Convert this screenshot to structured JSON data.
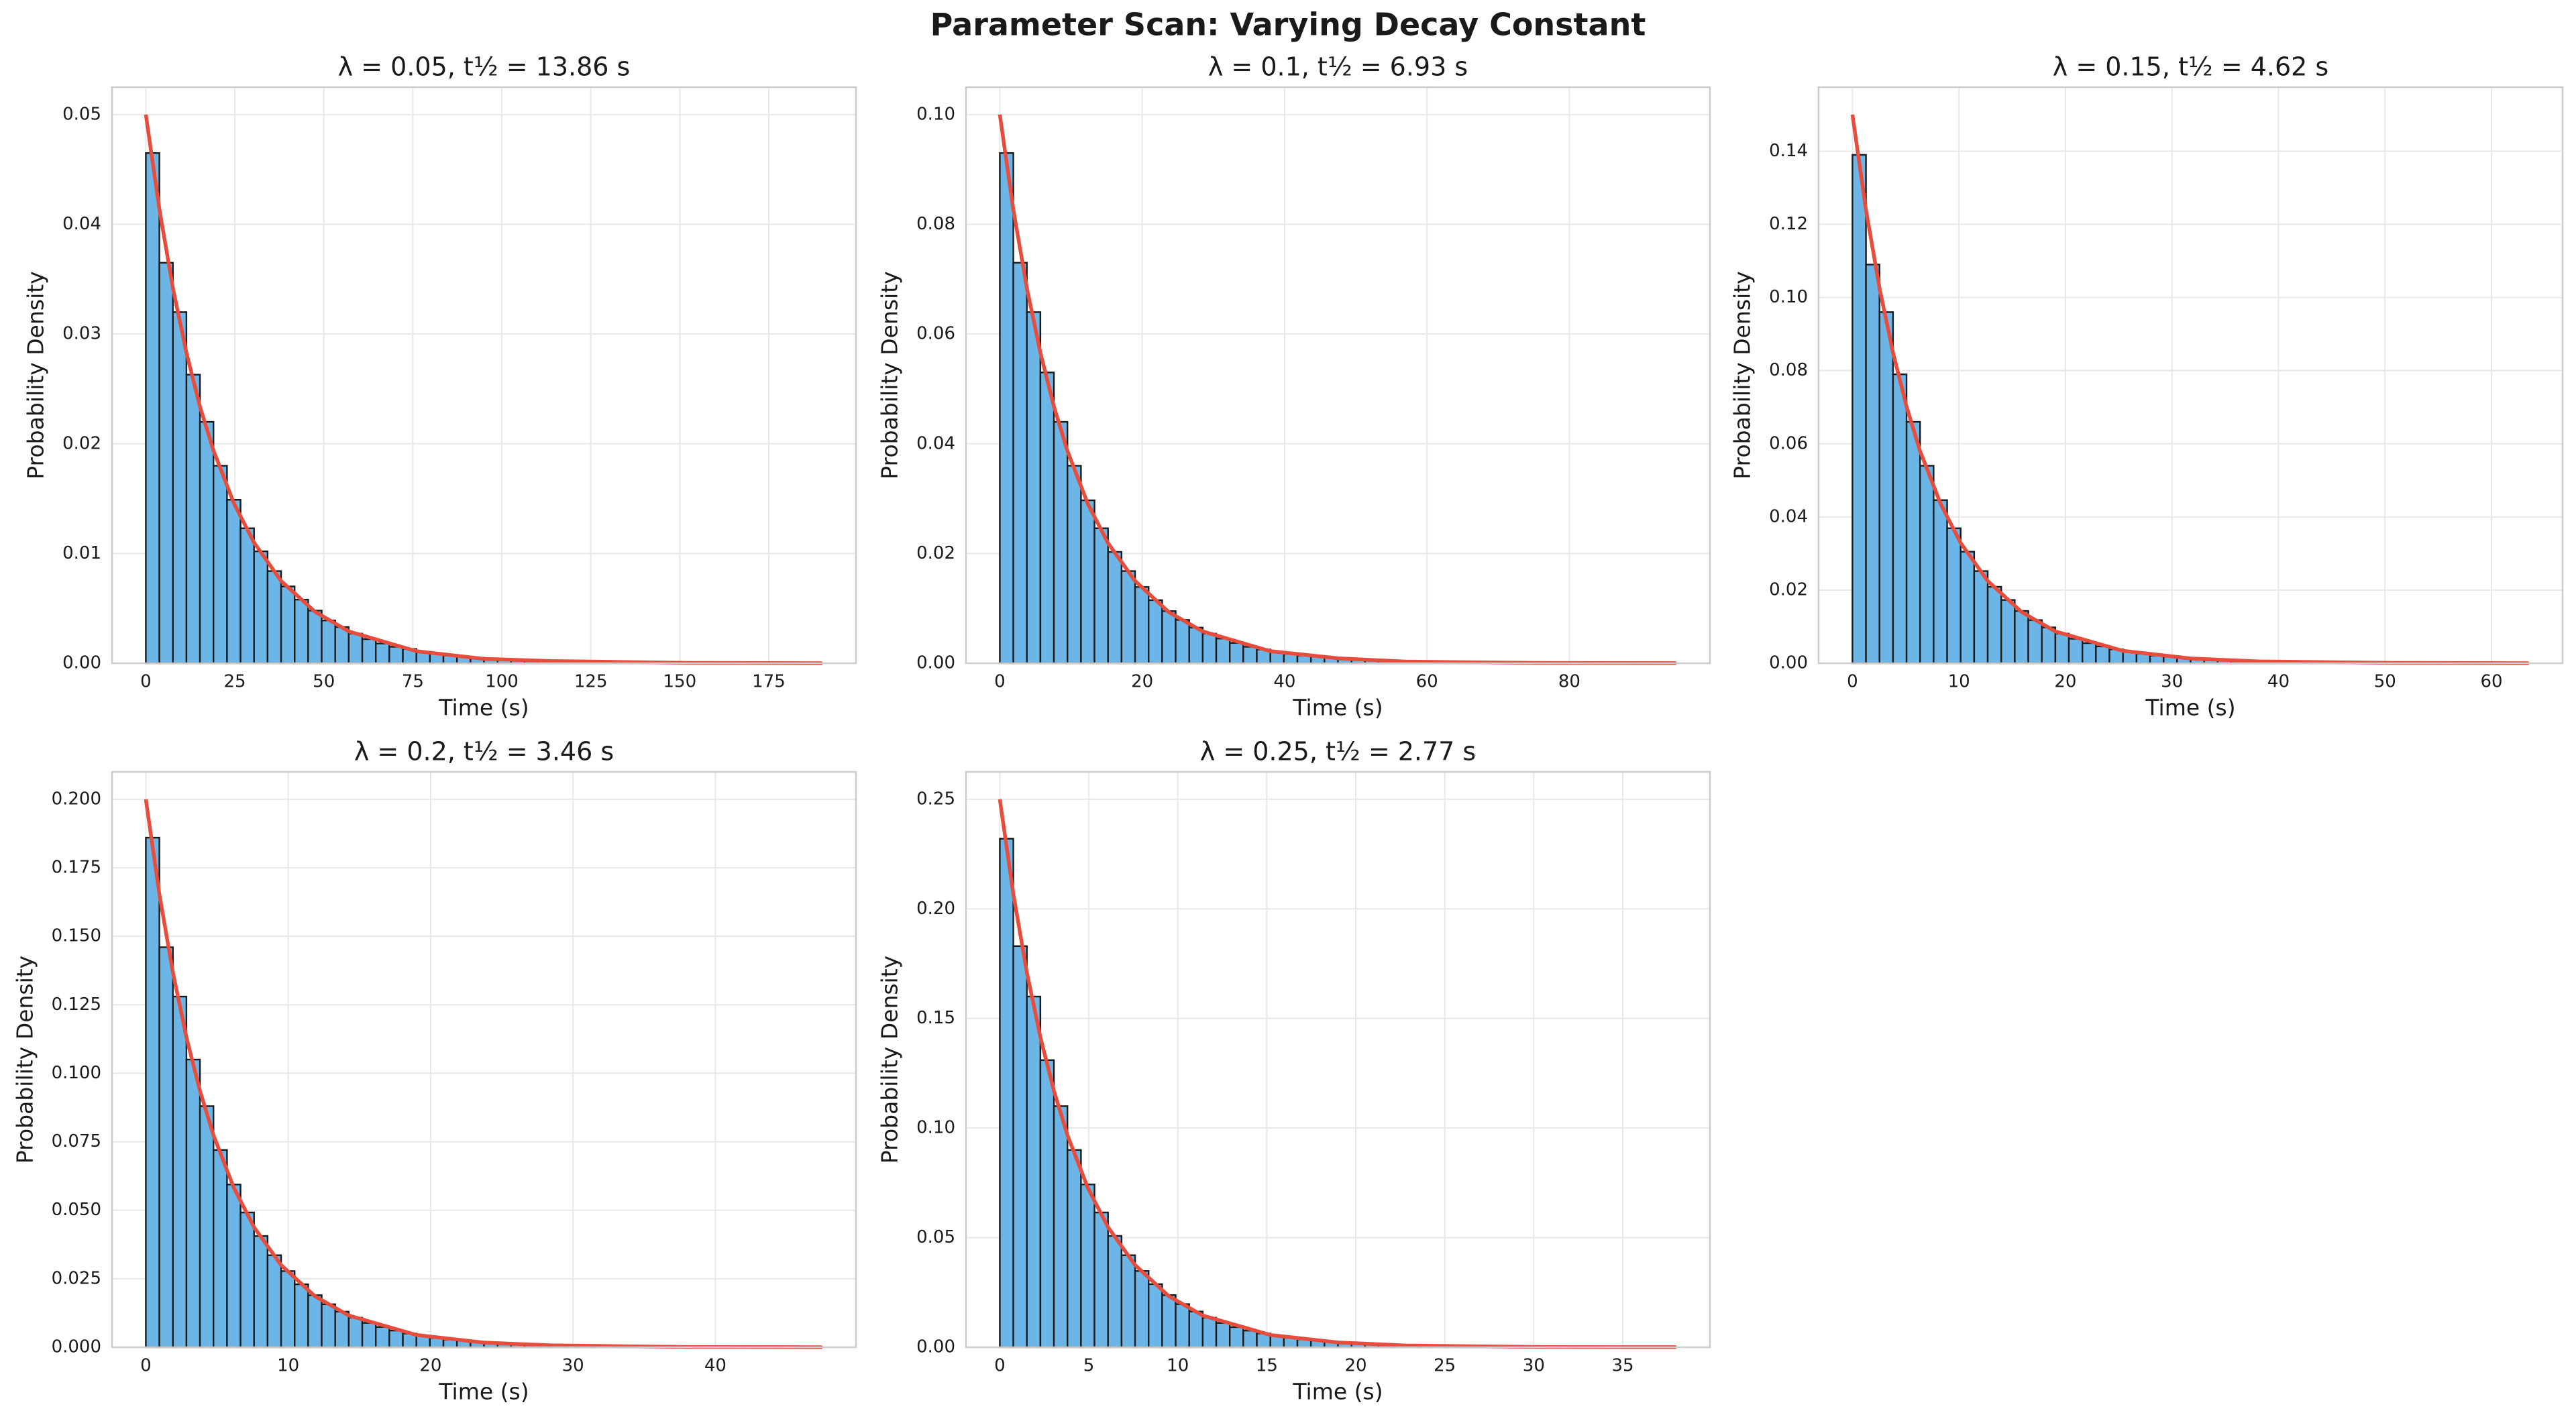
{
  "title": "Parameter Scan: Varying Decay Constant",
  "chart_data": [
    {
      "type": "histogram",
      "title": "λ = 0.05, t½ = 13.86 s",
      "x_label": "Time (s)",
      "y_label": "Probability Density",
      "color": "#6bb6e6",
      "edge_color": "#1a1a1a",
      "grid": true,
      "bins": [
        0,
        3.8,
        7.6,
        11.4,
        15.2,
        19,
        22.8,
        26.6,
        30.4,
        34.2,
        38,
        41.8,
        45.6,
        49.4,
        53.2,
        57,
        60.8,
        64.6,
        68.4,
        72.2,
        76,
        79.8,
        83.6,
        87.4,
        91.2,
        95,
        98.8,
        102.6,
        106.4,
        110.2,
        114,
        117.8,
        121.6,
        125.4,
        129.2,
        133,
        136.8,
        140.6,
        144.4,
        148.2,
        152,
        155.8,
        159.6,
        163.4,
        167.2,
        171,
        174.8,
        178.6,
        182.4,
        186.2,
        190
      ],
      "values": [
        0.0465,
        0.0365,
        0.032,
        0.0263,
        0.022,
        0.018,
        0.0149,
        0.0123,
        0.0102,
        0.0084,
        0.007,
        0.0058,
        0.0048,
        0.0039,
        0.0033,
        0.0027,
        0.0022,
        0.0018,
        0.0015,
        0.0013,
        0.001,
        0.0009,
        0.0007,
        0.0006,
        0.0005,
        0.0004,
        0.0003,
        0.0003,
        0.0002,
        0.0002,
        0.00016,
        0.00013,
        0.00011,
        9e-05,
        7e-05,
        6e-05,
        5e-05,
        4e-05,
        3e-05,
        3e-05,
        2e-05,
        2e-05,
        2e-05,
        1e-05,
        1e-05,
        1e-05,
        1e-05,
        1e-05,
        0,
        1e-05
      ],
      "fit": {
        "color": "#e74c3c",
        "x": [
          0,
          3.8,
          7.6,
          11.4,
          15.2,
          19,
          24.7,
          30.4,
          38,
          47.5,
          57,
          76,
          95,
          114,
          152,
          190
        ],
        "values": [
          0.05,
          0.0414,
          0.0342,
          0.0283,
          0.0234,
          0.0194,
          0.0146,
          0.011,
          0.0075,
          0.0047,
          0.0029,
          0.0011,
          0.0004,
          0.0002,
          3e-05,
          0
        ]
      },
      "xlim": [
        -9.5,
        199.5
      ],
      "ylim": [
        0,
        0.0525
      ],
      "xticks": [
        0,
        25,
        50,
        75,
        100,
        125,
        150,
        175
      ],
      "yticks": [
        {
          "value": 0,
          "label": "0.00"
        },
        0.01,
        0.02,
        0.03,
        0.04,
        0.05
      ]
    },
    {
      "type": "histogram",
      "title": "λ = 0.1, t½ = 6.93 s",
      "x_label": "Time (s)",
      "y_label": "Probability Density",
      "color": "#6bb6e6",
      "edge_color": "#1a1a1a",
      "grid": true,
      "bins": [
        0,
        1.9,
        3.8,
        5.7,
        7.6,
        9.5,
        11.4,
        13.3,
        15.2,
        17.1,
        19,
        20.9,
        22.8,
        24.7,
        26.6,
        28.5,
        30.4,
        32.3,
        34.2,
        36.1,
        38,
        39.9,
        41.8,
        43.7,
        45.6,
        47.5,
        49.4,
        51.3,
        53.2,
        55.1,
        57,
        58.9,
        60.8,
        62.7,
        64.6,
        66.5,
        68.4,
        70.3,
        72.2,
        74.1,
        76,
        77.9,
        79.8,
        81.7,
        83.6,
        85.5,
        87.4,
        89.3,
        91.2,
        93.1,
        95
      ],
      "values": [
        0.093,
        0.073,
        0.064,
        0.053,
        0.044,
        0.036,
        0.0297,
        0.0246,
        0.0203,
        0.0168,
        0.0139,
        0.0115,
        0.0095,
        0.0079,
        0.0065,
        0.0054,
        0.0045,
        0.0037,
        0.003,
        0.0025,
        0.0021,
        0.0017,
        0.0014,
        0.0012,
        0.001,
        0.0008,
        0.0007,
        0.0006,
        0.0005,
        0.0004,
        0.0003,
        0.0003,
        0.0002,
        0.0002,
        0.00015,
        0.00012,
        0.0001,
        8e-05,
        7e-05,
        6e-05,
        5e-05,
        4e-05,
        3e-05,
        3e-05,
        2e-05,
        2e-05,
        2e-05,
        1e-05,
        1e-05,
        1e-05
      ],
      "fit": {
        "color": "#e74c3c",
        "x": [
          0,
          1.9,
          3.8,
          5.7,
          7.6,
          9.5,
          12.35,
          15.2,
          19,
          23.75,
          28.5,
          38,
          47.5,
          57,
          76,
          95
        ],
        "values": [
          0.1,
          0.0827,
          0.0684,
          0.0566,
          0.0468,
          0.0387,
          0.0291,
          0.0219,
          0.015,
          0.0093,
          0.0058,
          0.0022,
          0.0009,
          0.0003,
          5e-05,
          1e-05
        ]
      },
      "xlim": [
        -4.75,
        99.75
      ],
      "ylim": [
        0,
        0.105
      ],
      "xticks": [
        0,
        20,
        40,
        60,
        80
      ],
      "yticks": [
        {
          "value": 0,
          "label": "0.00"
        },
        0.02,
        0.04,
        0.06,
        0.08,
        {
          "value": 0.1,
          "label": "0.10"
        }
      ]
    },
    {
      "type": "histogram",
      "title": "λ = 0.15, t½ = 4.62 s",
      "x_label": "Time (s)",
      "y_label": "Probability Density",
      "color": "#6bb6e6",
      "edge_color": "#1a1a1a",
      "grid": true,
      "bins": [
        0,
        1.27,
        2.54,
        3.81,
        5.08,
        6.35,
        7.62,
        8.89,
        10.16,
        11.43,
        12.7,
        13.97,
        15.24,
        16.51,
        17.78,
        19.05,
        20.32,
        21.59,
        22.86,
        24.13,
        25.4,
        26.67,
        27.94,
        29.21,
        30.48,
        31.75,
        33.02,
        34.29,
        35.56,
        36.83,
        38.1,
        39.37,
        40.64,
        41.91,
        43.18,
        44.45,
        45.72,
        46.99,
        48.26,
        49.53,
        50.8,
        52.07,
        53.34,
        54.61,
        55.88,
        57.15,
        58.42,
        59.69,
        60.96,
        62.23,
        63.5
      ],
      "values": [
        0.139,
        0.109,
        0.096,
        0.079,
        0.066,
        0.054,
        0.0446,
        0.0369,
        0.0305,
        0.0252,
        0.0209,
        0.0173,
        0.0143,
        0.0118,
        0.0098,
        0.0081,
        0.0067,
        0.0055,
        0.0046,
        0.0038,
        0.0031,
        0.0026,
        0.0021,
        0.0018,
        0.0015,
        0.0012,
        0.001,
        0.0008,
        0.0007,
        0.0006,
        0.0005,
        0.0004,
        0.0003,
        0.0003,
        0.0002,
        0.0002,
        0.00015,
        0.00012,
        0.0001,
        8e-05,
        7e-05,
        6e-05,
        5e-05,
        4e-05,
        3e-05,
        3e-05,
        2e-05,
        2e-05,
        2e-05,
        1e-05
      ],
      "fit": {
        "color": "#e74c3c",
        "x": [
          0,
          1.27,
          2.54,
          3.81,
          5.08,
          6.35,
          8.26,
          10.16,
          12.7,
          15.88,
          19.05,
          25.4,
          31.75,
          38.1,
          50.8,
          63.5
        ],
        "values": [
          0.15,
          0.124,
          0.1026,
          0.0849,
          0.0702,
          0.058,
          0.0437,
          0.0329,
          0.0225,
          0.014,
          0.0087,
          0.0034,
          0.0013,
          0.0005,
          8e-05,
          1e-05
        ]
      },
      "xlim": [
        -3.175,
        66.675
      ],
      "ylim": [
        0,
        0.1575
      ],
      "xticks": [
        0,
        10,
        20,
        30,
        40,
        50,
        60
      ],
      "yticks": [
        {
          "value": 0,
          "label": "0.00"
        },
        0.02,
        0.04,
        0.06,
        0.08,
        {
          "value": 0.1,
          "label": "0.10"
        },
        0.12,
        0.14
      ]
    },
    {
      "type": "histogram",
      "title": "λ = 0.2, t½ = 3.46 s",
      "x_label": "Time (s)",
      "y_label": "Probability Density",
      "color": "#6bb6e6",
      "edge_color": "#1a1a1a",
      "grid": true,
      "bins": [
        0,
        0.95,
        1.9,
        2.85,
        3.8,
        4.75,
        5.7,
        6.65,
        7.6,
        8.55,
        9.5,
        10.45,
        11.4,
        12.35,
        13.3,
        14.25,
        15.2,
        16.15,
        17.1,
        18.05,
        19,
        19.95,
        20.9,
        21.85,
        22.8,
        23.75,
        24.7,
        25.65,
        26.6,
        27.55,
        28.5,
        29.45,
        30.4,
        31.35,
        32.3,
        33.25,
        34.2,
        35.15,
        36.1,
        37.05,
        38,
        38.95,
        39.9,
        40.85,
        41.8,
        42.75,
        43.7,
        44.65,
        45.6,
        46.55,
        47.5
      ],
      "values": [
        0.186,
        0.146,
        0.128,
        0.105,
        0.088,
        0.072,
        0.0594,
        0.0492,
        0.0406,
        0.0336,
        0.0278,
        0.023,
        0.019,
        0.0157,
        0.013,
        0.0108,
        0.0089,
        0.0074,
        0.0061,
        0.005,
        0.0042,
        0.0034,
        0.0028,
        0.0024,
        0.0019,
        0.0016,
        0.0013,
        0.0011,
        0.0009,
        0.0008,
        0.0006,
        0.0005,
        0.0004,
        0.00035,
        0.0003,
        0.00024,
        0.0002,
        0.00016,
        0.00014,
        0.00011,
        9e-05,
        8e-05,
        6e-05,
        5e-05,
        4e-05,
        4e-05,
        3e-05,
        2e-05,
        2e-05,
        2e-05
      ],
      "fit": {
        "color": "#e74c3c",
        "x": [
          0,
          0.95,
          1.9,
          2.85,
          3.8,
          4.75,
          6.18,
          7.6,
          9.5,
          11.88,
          14.25,
          19,
          23.75,
          28.5,
          38,
          47.5
        ],
        "values": [
          0.2,
          0.1654,
          0.1368,
          0.1132,
          0.0936,
          0.0774,
          0.0582,
          0.0438,
          0.03,
          0.0186,
          0.0116,
          0.0045,
          0.0017,
          0.0007,
          0.0001,
          1e-05
        ]
      },
      "xlim": [
        -2.375,
        49.875
      ],
      "ylim": [
        0,
        0.21
      ],
      "xticks": [
        0,
        10,
        20,
        30,
        40
      ],
      "yticks": [
        {
          "value": 0,
          "label": "0.000"
        },
        0.025,
        {
          "value": 0.05,
          "label": "0.050"
        },
        0.075,
        {
          "value": 0.1,
          "label": "0.100"
        },
        0.125,
        {
          "value": 0.15,
          "label": "0.150"
        },
        0.175,
        {
          "value": 0.2,
          "label": "0.200"
        }
      ]
    },
    {
      "type": "histogram",
      "title": "λ = 0.25, t½ = 2.77 s",
      "x_label": "Time (s)",
      "y_label": "Probability Density",
      "color": "#6bb6e6",
      "edge_color": "#1a1a1a",
      "grid": true,
      "bins": [
        0,
        0.76,
        1.52,
        2.28,
        3.04,
        3.8,
        4.56,
        5.32,
        6.08,
        6.84,
        7.6,
        8.36,
        9.12,
        9.88,
        10.64,
        11.4,
        12.16,
        12.92,
        13.68,
        14.44,
        15.2,
        15.96,
        16.72,
        17.48,
        18.24,
        19,
        19.76,
        20.52,
        21.28,
        22.04,
        22.8,
        23.56,
        24.32,
        25.08,
        25.84,
        26.6,
        27.36,
        28.12,
        28.88,
        29.64,
        30.4,
        31.16,
        31.92,
        32.68,
        33.44,
        34.2,
        34.96,
        35.72,
        36.48,
        37.24,
        38
      ],
      "values": [
        0.232,
        0.183,
        0.16,
        0.131,
        0.11,
        0.09,
        0.0743,
        0.0615,
        0.0508,
        0.042,
        0.0348,
        0.0288,
        0.0238,
        0.0197,
        0.0163,
        0.0135,
        0.0111,
        0.0092,
        0.0076,
        0.0063,
        0.0052,
        0.0043,
        0.0036,
        0.003,
        0.0024,
        0.002,
        0.0017,
        0.0014,
        0.0011,
        0.0009,
        0.0008,
        0.0006,
        0.0005,
        0.0004,
        0.00037,
        0.0003,
        0.00025,
        0.0002,
        0.00017,
        0.00014,
        0.00012,
        0.0001,
        8e-05,
        7e-05,
        5e-05,
        5e-05,
        4e-05,
        3e-05,
        3e-05,
        2e-05
      ],
      "fit": {
        "color": "#e74c3c",
        "x": [
          0,
          0.76,
          1.52,
          2.28,
          3.04,
          3.8,
          4.94,
          6.08,
          7.6,
          9.5,
          11.4,
          15.2,
          19,
          22.8,
          30.4,
          38
        ],
        "values": [
          0.25,
          0.2068,
          0.171,
          0.1415,
          0.117,
          0.0968,
          0.0728,
          0.0548,
          0.0375,
          0.0233,
          0.0145,
          0.0056,
          0.0022,
          0.0008,
          0.0001,
          2e-05
        ]
      },
      "xlim": [
        -1.9,
        39.9
      ],
      "ylim": [
        0,
        0.2625
      ],
      "xticks": [
        0,
        5,
        10,
        15,
        20,
        25,
        30,
        35
      ],
      "yticks": [
        {
          "value": 0,
          "label": "0.00"
        },
        0.05,
        {
          "value": 0.1,
          "label": "0.10"
        },
        0.15,
        {
          "value": 0.2,
          "label": "0.20"
        },
        0.25
      ]
    }
  ]
}
